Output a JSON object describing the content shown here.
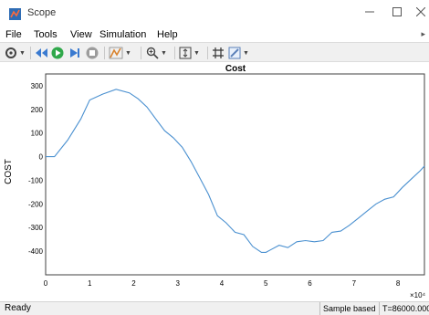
{
  "window": {
    "title": "Scope"
  },
  "menu": {
    "items": [
      "File",
      "Tools",
      "View",
      "Simulation",
      "Help"
    ]
  },
  "colors": {
    "plot_background": "#ffffff",
    "line": "#4a90d0",
    "grid": "#d8d8d8"
  },
  "toolbar": {
    "icons": [
      "settings-icon",
      "step-back-icon",
      "run-icon",
      "step-forward-icon",
      "stop-icon",
      "highlight-icon",
      "zoom-in-icon",
      "autoscale-icon",
      "cursor-measure-icon",
      "annotate-icon"
    ]
  },
  "status": {
    "ready": "Ready",
    "sample_mode": "Sample based",
    "time": "T=86000.000"
  },
  "chart_data": {
    "type": "line",
    "title": "Cost",
    "xlabel": "",
    "ylabel": "COST",
    "x_exponent_label": "×10⁴",
    "xlim": [
      0,
      8.6
    ],
    "ylim": [
      -500,
      350
    ],
    "xticks": [
      "0",
      "1",
      "2",
      "3",
      "4",
      "5",
      "6",
      "7",
      "8"
    ],
    "yticks": [
      "300",
      "200",
      "100",
      "0",
      "-100",
      "-200",
      "-300",
      "-400"
    ],
    "grid": true,
    "x_unit": "×10⁴",
    "x": [
      0,
      0.2,
      0.5,
      0.8,
      1.0,
      1.3,
      1.6,
      1.9,
      2.1,
      2.3,
      2.5,
      2.7,
      2.9,
      3.1,
      3.3,
      3.5,
      3.7,
      3.9,
      4.1,
      4.3,
      4.5,
      4.7,
      4.9,
      5.0,
      5.1,
      5.3,
      5.5,
      5.7,
      5.9,
      6.1,
      6.3,
      6.5,
      6.7,
      6.9,
      7.1,
      7.3,
      7.5,
      7.7,
      7.9,
      8.1,
      8.3,
      8.5,
      8.6
    ],
    "series": [
      {
        "values": [
          0,
          0,
          70,
          160,
          240,
          265,
          285,
          270,
          245,
          210,
          160,
          110,
          80,
          40,
          -20,
          -90,
          -160,
          -250,
          -280,
          -320,
          -330,
          -380,
          -405,
          -405,
          -395,
          -375,
          -385,
          -360,
          -355,
          -360,
          -355,
          -320,
          -315,
          -290,
          -260,
          -230,
          -200,
          -180,
          -170,
          -130,
          -95,
          -60,
          -40
        ]
      }
    ]
  }
}
